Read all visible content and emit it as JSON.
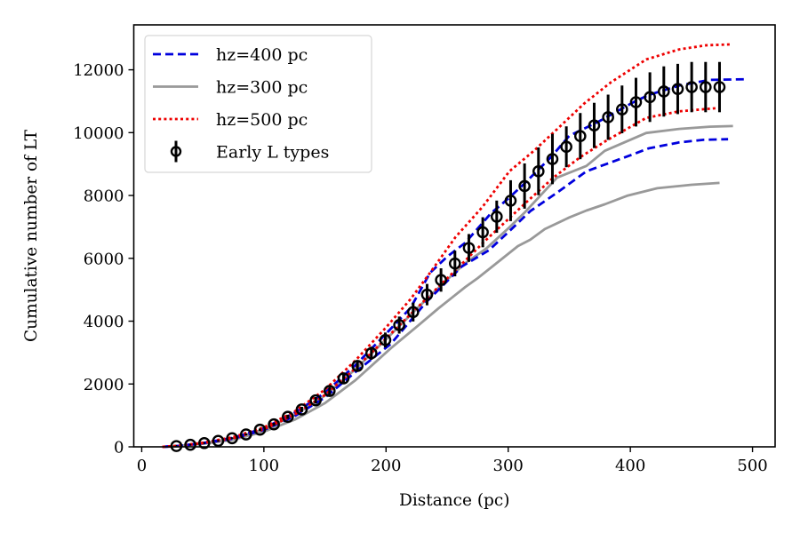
{
  "chart_data": {
    "type": "line",
    "title": "",
    "xlabel": "Distance (pc)",
    "ylabel": "Cumulative number of LT",
    "xlim": [
      -6.5,
      518.5
    ],
    "ylim": [
      0,
      13430
    ],
    "xticks": [
      0,
      100,
      200,
      300,
      400,
      500
    ],
    "xtick_labels": [
      "0",
      "100",
      "200",
      "300",
      "400",
      "500"
    ],
    "yticks": [
      0,
      2000,
      4000,
      6000,
      8000,
      10000,
      12000
    ],
    "ytick_labels": [
      "0",
      "2000",
      "4000",
      "6000",
      "8000",
      "10000",
      "12000"
    ],
    "grid": false,
    "legend": {
      "position": "top-left",
      "entries": [
        {
          "label": "hz=400 pc",
          "style": "dashed",
          "color": "#0000dd"
        },
        {
          "label": "hz=300 pc",
          "style": "solid",
          "color": "#999999"
        },
        {
          "label": "hz=500 pc",
          "style": "dotted",
          "color": "#ee0000"
        },
        {
          "label": "Early L types",
          "style": "errorbar-marker",
          "color": "#000000"
        }
      ]
    },
    "series": [
      {
        "name": "hz=400 pc (upper)",
        "legend_ref": 0,
        "color": "#0000dd",
        "style": "dashed",
        "x": [
          17,
          30,
          50,
          75,
          100,
          125,
          150,
          175,
          200,
          220,
          236,
          250,
          265,
          286,
          300,
          313,
          335,
          350,
          374,
          403,
          415,
          440,
          465,
          494
        ],
        "y": [
          0,
          30,
          120,
          290,
          590,
          1080,
          1720,
          2600,
          3600,
          4420,
          5540,
          6050,
          6500,
          7440,
          7900,
          8370,
          9220,
          9900,
          10350,
          10980,
          11200,
          11500,
          11680,
          11700
        ]
      },
      {
        "name": "hz=400 pc (lower)",
        "legend_ref": 0,
        "color": "#0000dd",
        "style": "dashed",
        "x": [
          17,
          30,
          50,
          75,
          100,
          125,
          150,
          175,
          204,
          233,
          262,
          284,
          299,
          318,
          340,
          364,
          398,
          415,
          440,
          460,
          480
        ],
        "y": [
          0,
          25,
          110,
          260,
          540,
          970,
          1570,
          2380,
          3280,
          4610,
          5740,
          6250,
          6790,
          7500,
          8090,
          8770,
          9250,
          9500,
          9690,
          9770,
          9790
        ]
      },
      {
        "name": "hz=300 pc (upper)",
        "legend_ref": 1,
        "color": "#999999",
        "style": "solid",
        "x": [
          17,
          30,
          50,
          75,
          100,
          125,
          150,
          175,
          200,
          225,
          250,
          265,
          282,
          300,
          313,
          340,
          364,
          379,
          413,
          440,
          465,
          484
        ],
        "y": [
          0,
          25,
          110,
          265,
          550,
          1000,
          1630,
          2470,
          3420,
          4390,
          5320,
          5850,
          6310,
          6950,
          7440,
          8570,
          8940,
          9420,
          9990,
          10120,
          10190,
          10210
        ]
      },
      {
        "name": "hz=300 pc (lower)",
        "legend_ref": 1,
        "color": "#999999",
        "style": "solid",
        "x": [
          17,
          30,
          50,
          75,
          100,
          125,
          150,
          175,
          204,
          226,
          243,
          265,
          275,
          287,
          308,
          318,
          330,
          350,
          364,
          379,
          398,
          422,
          450,
          473
        ],
        "y": [
          0,
          20,
          95,
          230,
          480,
          860,
          1390,
          2120,
          3140,
          3850,
          4410,
          5090,
          5370,
          5740,
          6390,
          6590,
          6930,
          7300,
          7520,
          7720,
          8000,
          8230,
          8340,
          8400
        ]
      },
      {
        "name": "hz=500 pc (upper)",
        "legend_ref": 2,
        "color": "#ee0000",
        "style": "dotted",
        "x": [
          17,
          30,
          50,
          75,
          100,
          125,
          150,
          175,
          200,
          220,
          236,
          257,
          279,
          301,
          321,
          342,
          362,
          384,
          413,
          440,
          462,
          483
        ],
        "y": [
          0,
          35,
          130,
          310,
          620,
          1120,
          1820,
          2750,
          3800,
          4700,
          5540,
          6680,
          7640,
          8770,
          9420,
          10180,
          10920,
          11600,
          12330,
          12650,
          12780,
          12810
        ]
      },
      {
        "name": "hz=500 pc (lower)",
        "legend_ref": 2,
        "color": "#ee0000",
        "style": "dotted",
        "x": [
          17,
          30,
          50,
          75,
          100,
          125,
          150,
          175,
          200,
          230,
          260,
          282,
          313,
          337,
          359,
          381,
          413,
          440,
          471
        ],
        "y": [
          0,
          28,
          115,
          275,
          560,
          1020,
          1650,
          2500,
          3450,
          4600,
          5740,
          6590,
          7720,
          8570,
          9220,
          9760,
          10470,
          10680,
          10780
        ]
      }
    ],
    "errorbar_series": {
      "name": "Early L types",
      "color": "#000000",
      "marker": "open-circle-with-dot",
      "x": [
        28.4,
        39.8,
        51.2,
        62.6,
        74.0,
        85.4,
        96.8,
        108.2,
        119.6,
        131.0,
        142.4,
        153.8,
        165.2,
        176.6,
        188.0,
        199.4,
        210.8,
        222.2,
        233.6,
        245.0,
        256.4,
        267.8,
        279.2,
        290.6,
        302.0,
        313.4,
        324.8,
        336.2,
        347.6,
        359.0,
        370.4,
        381.8,
        393.2,
        404.6,
        416.0,
        427.4,
        438.8,
        450.2,
        461.6,
        473.0
      ],
      "y": [
        25,
        65,
        120,
        190,
        275,
        395,
        545,
        715,
        955,
        1190,
        1480,
        1780,
        2180,
        2575,
        2980,
        3400,
        3875,
        4290,
        4845,
        5310,
        5835,
        6330,
        6830,
        7325,
        7835,
        8300,
        8770,
        9160,
        9550,
        9890,
        10230,
        10490,
        10740,
        10970,
        11130,
        11310,
        11390,
        11450,
        11450,
        11450
      ],
      "yerr": [
        2,
        5,
        8,
        13,
        19,
        28,
        38,
        50,
        67,
        83,
        104,
        125,
        153,
        180,
        209,
        238,
        271,
        300,
        340,
        372,
        408,
        443,
        478,
        513,
        650,
        720,
        760,
        800,
        650,
        735,
        720,
        720,
        760,
        775,
        790,
        800,
        800,
        800,
        800,
        800
      ]
    }
  }
}
